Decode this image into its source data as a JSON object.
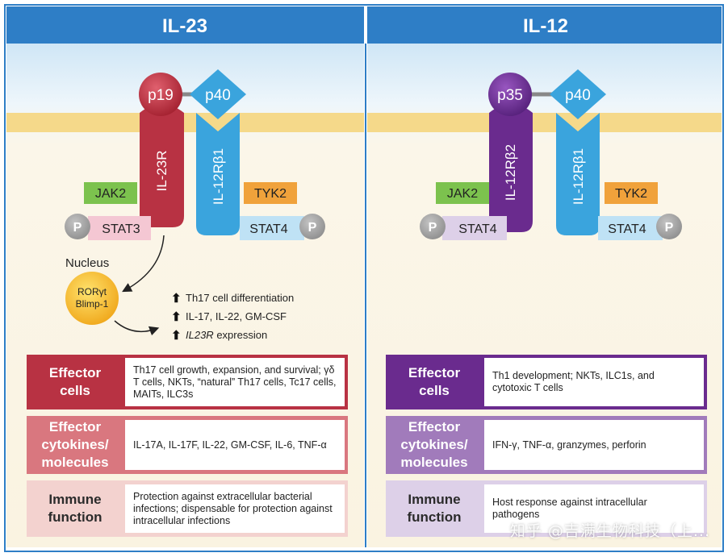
{
  "panels": {
    "left": {
      "title": "IL-23",
      "ligand_a": "p19",
      "ligand_b": "p40",
      "receptor_a": "IL-23R",
      "receptor_b": "IL-12Rβ1",
      "kinase_a": "JAK2",
      "kinase_b": "TYK2",
      "stat_a": "STAT3",
      "stat_b": "STAT4",
      "phospho": "P",
      "nucleus": "Nucleus",
      "tf_1": "RORγt",
      "tf_2": "Blimp-1",
      "outcomes": [
        "Th17 cell differentiation",
        "IL-17, IL-22, GM-CSF",
        "IL23R",
        " expression"
      ]
    },
    "right": {
      "title": "IL-12",
      "ligand_a": "p35",
      "ligand_b": "p40",
      "receptor_a": "IL-12Rβ2",
      "receptor_b": "IL-12Rβ1",
      "kinase_a": "JAK2",
      "kinase_b": "TYK2",
      "stat_a": "STAT4",
      "stat_b": "STAT4",
      "phospho": "P"
    }
  },
  "table": {
    "categories": {
      "effector_cells": "Effector\ncells",
      "effector_cytokines": "Effector\ncytokines/\nmolecules",
      "immune_function": "Immune\nfunction"
    },
    "il23": {
      "effector_cells": "Th17 cell growth, expansion, and survival; γδ T cells, NKTs, “natural” Th17 cells, Tc17 cells, MAITs, ILC3s",
      "effector_cytokines": "IL-17A, IL-17F, IL-22, GM-CSF, IL-6, TNF-α",
      "immune_function": "Protection against extracellular bacterial infections; dispensable for protection against intracellular infections"
    },
    "il12": {
      "effector_cells": "Th1 development; NKTs, ILC1s, and cytotoxic T cells",
      "effector_cytokines": "IFN-γ, TNF-α, granzymes, perforin",
      "immune_function": "Host response against intracellular pathogens"
    }
  },
  "watermark": "知乎 @吉满生物科技（上...",
  "colors": {
    "header_blue": "#2e7ec6",
    "il23_red": "#b83243",
    "il12_purple": "#6a2b8e",
    "receptor_blue": "#3aa4dd",
    "jak_green": "#7cc24e",
    "tyk_orange": "#f0a23b",
    "membrane": "#f5d98a"
  }
}
